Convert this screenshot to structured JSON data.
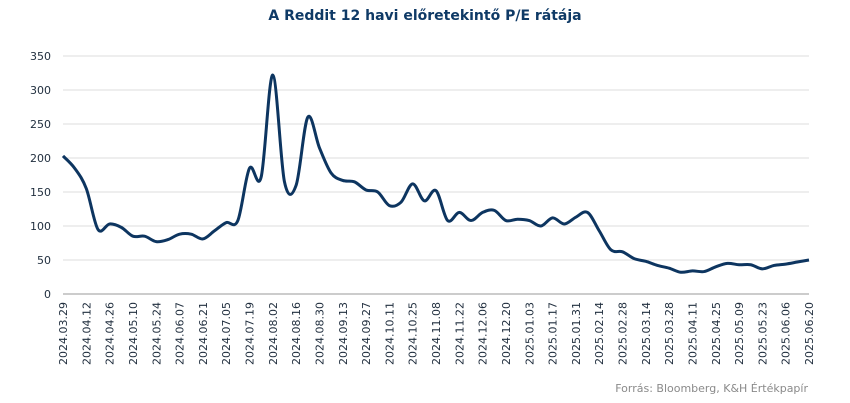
{
  "chart_data": {
    "type": "line",
    "title": "A Reddit 12 havi előretekintő P/E rátája",
    "source": "Forrás: Bloomberg, K&H Értékpapír",
    "categories": [
      "2024.03.29",
      null,
      "2024.04.12",
      null,
      "2024.04.26",
      null,
      "2024.05.10",
      null,
      "2024.05.24",
      null,
      "2024.06.07",
      null,
      "2024.06.21",
      null,
      "2024.07.05",
      null,
      "2024.07.19",
      null,
      "2024.08.02",
      null,
      "2024.08.16",
      null,
      "2024.08.30",
      null,
      "2024.09.13",
      null,
      "2024.09.27",
      null,
      "2024.10.11",
      null,
      "2024.10.25",
      null,
      "2024.11.08",
      null,
      "2024.11.22",
      null,
      "2024.12.06",
      null,
      "2024.12.20",
      null,
      "2025.01.03",
      null,
      "2025.01.17",
      null,
      "2025.01.31",
      null,
      "2025.02.14",
      null,
      "2025.02.28",
      null,
      "2025.03.14",
      null,
      "2025.03.28",
      null,
      "2025.04.11",
      null,
      "2025.04.25",
      null,
      "2025.05.09",
      null,
      "2025.05.23",
      null,
      "2025.06.06",
      null,
      "2025.06.20"
    ],
    "series": [
      {
        "color": "#0d3560",
        "values": [
          203,
          185,
          155,
          95,
          103,
          98,
          85,
          85,
          77,
          80,
          88,
          88,
          81,
          93,
          105,
          108,
          185,
          172,
          322,
          165,
          160,
          260,
          215,
          178,
          167,
          165,
          153,
          150,
          130,
          135,
          162,
          137,
          152,
          108,
          120,
          108,
          120,
          123,
          108,
          110,
          108,
          100,
          112,
          103,
          113,
          120,
          93,
          65,
          62,
          52,
          48,
          42,
          38,
          32,
          34,
          33,
          40,
          45,
          43,
          43,
          37,
          42,
          44,
          47,
          50
        ]
      }
    ],
    "ylim": [
      0,
      350
    ],
    "yticks": [
      0,
      50,
      100,
      150,
      200,
      250,
      300,
      350
    ],
    "grid": true
  }
}
